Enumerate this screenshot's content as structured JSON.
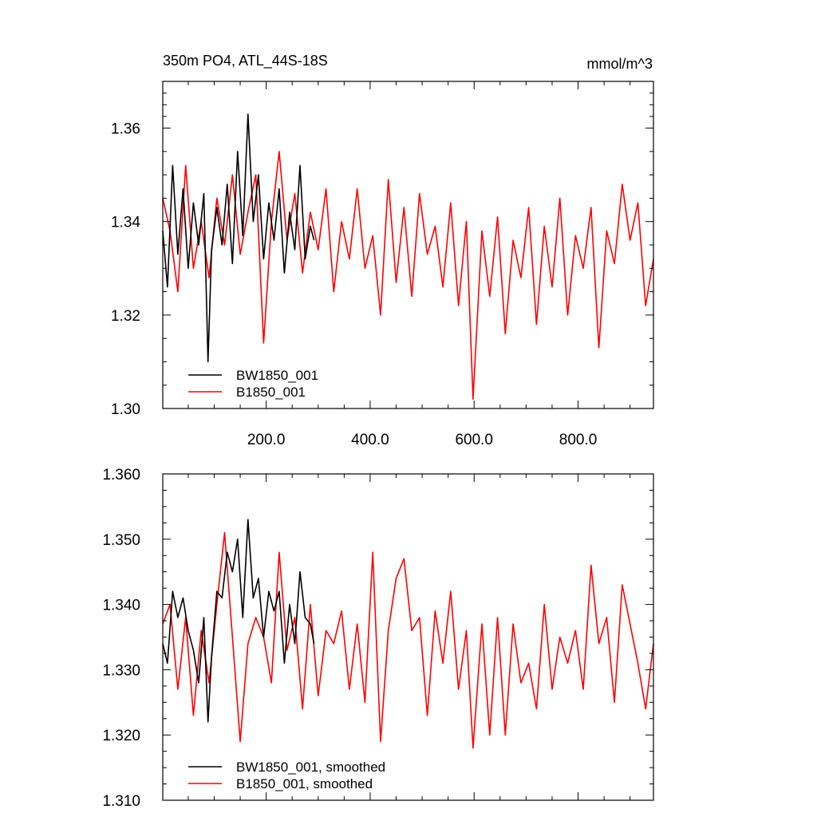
{
  "chart_data": [
    {
      "type": "line",
      "title": "350m PO4, ATL_44S-18S",
      "units_label": "mmol/m^3",
      "xlim": [
        1,
        945
      ],
      "ylim": [
        1.3,
        1.37
      ],
      "xticks": [
        200,
        400,
        600,
        800
      ],
      "xtick_labels": [
        "200.0",
        "400.0",
        "600.0",
        "800.0"
      ],
      "yticks": [
        1.3,
        1.32,
        1.34,
        1.36
      ],
      "ytick_labels": [
        "1.30",
        "1.32",
        "1.34",
        "1.36"
      ],
      "legend_position": "bottom-left",
      "grid": false,
      "series": [
        {
          "name": "BW1850_001",
          "color": "#000000",
          "x": [
            1,
            10,
            20,
            30,
            40,
            50,
            60,
            70,
            80,
            88,
            95,
            105,
            115,
            125,
            135,
            145,
            155,
            165,
            175,
            185,
            195,
            205,
            215,
            225,
            235,
            245,
            255,
            265,
            275,
            285,
            292
          ],
          "y": [
            1.338,
            1.326,
            1.352,
            1.333,
            1.347,
            1.33,
            1.344,
            1.335,
            1.346,
            1.31,
            1.334,
            1.343,
            1.335,
            1.348,
            1.331,
            1.355,
            1.337,
            1.363,
            1.34,
            1.35,
            1.332,
            1.344,
            1.336,
            1.347,
            1.329,
            1.342,
            1.334,
            1.352,
            1.332,
            1.339,
            1.336
          ]
        },
        {
          "name": "B1850_001",
          "color": "#ff0000",
          "x": [
            1,
            15,
            30,
            45,
            60,
            75,
            90,
            105,
            120,
            135,
            150,
            165,
            180,
            195,
            210,
            225,
            240,
            255,
            270,
            285,
            300,
            315,
            330,
            345,
            360,
            375,
            390,
            405,
            420,
            435,
            450,
            465,
            480,
            495,
            510,
            525,
            540,
            555,
            570,
            585,
            598,
            615,
            630,
            645,
            660,
            675,
            690,
            705,
            720,
            735,
            750,
            765,
            780,
            795,
            810,
            825,
            840,
            855,
            870,
            885,
            900,
            915,
            930,
            945
          ],
          "y": [
            1.345,
            1.338,
            1.325,
            1.352,
            1.33,
            1.34,
            1.328,
            1.345,
            1.335,
            1.35,
            1.333,
            1.342,
            1.35,
            1.314,
            1.34,
            1.355,
            1.336,
            1.346,
            1.329,
            1.342,
            1.334,
            1.347,
            1.325,
            1.34,
            1.332,
            1.347,
            1.33,
            1.337,
            1.32,
            1.349,
            1.327,
            1.343,
            1.324,
            1.346,
            1.333,
            1.339,
            1.326,
            1.344,
            1.322,
            1.34,
            1.302,
            1.338,
            1.324,
            1.341,
            1.316,
            1.336,
            1.328,
            1.343,
            1.318,
            1.339,
            1.326,
            1.345,
            1.32,
            1.337,
            1.33,
            1.343,
            1.313,
            1.338,
            1.331,
            1.348,
            1.336,
            1.344,
            1.322,
            1.332
          ]
        }
      ]
    },
    {
      "type": "line",
      "title": "",
      "xlim": [
        1,
        945
      ],
      "ylim": [
        1.31,
        1.36
      ],
      "yticks": [
        1.31,
        1.32,
        1.33,
        1.34,
        1.35,
        1.36
      ],
      "ytick_labels": [
        "1.310",
        "1.320",
        "1.330",
        "1.340",
        "1.350",
        "1.360"
      ],
      "legend_position": "bottom-left",
      "grid": false,
      "series": [
        {
          "name": "BW1850_001, smoothed",
          "color": "#000000",
          "x": [
            1,
            10,
            20,
            30,
            40,
            50,
            60,
            70,
            80,
            88,
            95,
            105,
            115,
            125,
            135,
            145,
            155,
            165,
            175,
            185,
            195,
            205,
            215,
            225,
            235,
            245,
            255,
            265,
            275,
            285,
            292
          ],
          "y": [
            1.334,
            1.331,
            1.342,
            1.338,
            1.341,
            1.336,
            1.333,
            1.328,
            1.338,
            1.322,
            1.332,
            1.342,
            1.341,
            1.348,
            1.345,
            1.35,
            1.338,
            1.353,
            1.341,
            1.344,
            1.335,
            1.342,
            1.339,
            1.342,
            1.331,
            1.34,
            1.334,
            1.345,
            1.338,
            1.337,
            1.334
          ]
        },
        {
          "name": "B1850_001, smoothed",
          "color": "#ff0000",
          "x": [
            1,
            15,
            30,
            45,
            60,
            75,
            90,
            105,
            120,
            135,
            150,
            165,
            180,
            195,
            210,
            225,
            240,
            255,
            270,
            285,
            300,
            315,
            330,
            345,
            360,
            375,
            390,
            405,
            420,
            435,
            450,
            465,
            480,
            495,
            510,
            525,
            540,
            555,
            570,
            585,
            598,
            615,
            630,
            645,
            660,
            675,
            690,
            705,
            720,
            735,
            750,
            765,
            780,
            795,
            810,
            825,
            840,
            855,
            870,
            885,
            900,
            915,
            930,
            945
          ],
          "y": [
            1.337,
            1.34,
            1.327,
            1.338,
            1.323,
            1.336,
            1.328,
            1.34,
            1.351,
            1.335,
            1.319,
            1.334,
            1.338,
            1.335,
            1.328,
            1.348,
            1.333,
            1.338,
            1.324,
            1.34,
            1.326,
            1.336,
            1.334,
            1.339,
            1.327,
            1.337,
            1.325,
            1.348,
            1.319,
            1.336,
            1.344,
            1.347,
            1.336,
            1.338,
            1.323,
            1.339,
            1.331,
            1.342,
            1.327,
            1.336,
            1.318,
            1.337,
            1.32,
            1.338,
            1.32,
            1.337,
            1.328,
            1.331,
            1.324,
            1.34,
            1.327,
            1.335,
            1.331,
            1.336,
            1.327,
            1.346,
            1.334,
            1.338,
            1.325,
            1.343,
            1.337,
            1.331,
            1.324,
            1.334
          ]
        }
      ]
    }
  ]
}
